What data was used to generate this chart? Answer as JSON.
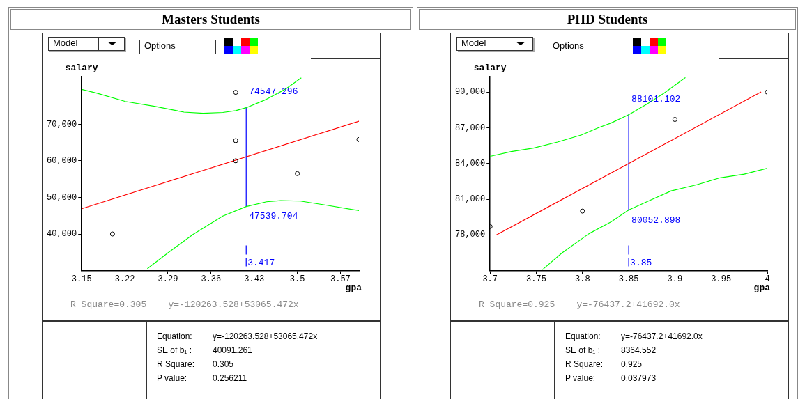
{
  "chart_data": [
    {
      "type": "scatter",
      "title": "Masters Students",
      "xlabel": "gpa",
      "ylabel": "salary",
      "xlim": [
        3.15,
        3.6
      ],
      "xticks": [
        3.15,
        3.22,
        3.29,
        3.36,
        3.43,
        3.5,
        3.57
      ],
      "ylim": [
        30000,
        83000
      ],
      "yticks": [
        {
          "value": 40000,
          "label": "40,000"
        },
        {
          "value": 50000,
          "label": "50,000"
        },
        {
          "value": 60000,
          "label": "60,000"
        },
        {
          "value": 70000,
          "label": "70,000"
        }
      ],
      "series": [
        {
          "marker": "circle",
          "color": "#000000",
          "x": [
            3.2,
            3.4,
            3.4,
            3.4,
            3.5,
            3.6
          ],
          "values": [
            40000,
            60000,
            65500,
            78700,
            56500,
            65800
          ]
        },
        {
          "type": "line",
          "color": "#ff0000",
          "x": [
            3.15,
            3.6
          ],
          "values": [
            46900,
            70800
          ]
        },
        {
          "type": "line",
          "color": "#00ff00",
          "x": [
            3.15,
            3.174,
            3.221,
            3.268,
            3.316,
            3.347,
            3.379,
            3.4,
            3.417,
            3.45,
            3.482,
            3.506
          ],
          "values": [
            79500,
            78500,
            76200,
            74900,
            73300,
            73000,
            73200,
            73700,
            74500,
            76800,
            79700,
            82600
          ]
        },
        {
          "type": "line",
          "color": "#00ff00",
          "x": [
            3.257,
            3.292,
            3.331,
            3.379,
            3.417,
            3.45,
            3.473,
            3.505,
            3.543,
            3.6
          ],
          "values": [
            30600,
            35100,
            39900,
            44900,
            47500,
            48800,
            49100,
            49000,
            48000,
            46400
          ]
        },
        {
          "type": "line",
          "color": "#0000ff",
          "x": [
            3.417,
            3.417
          ],
          "values": [
            47539.704,
            74547.296
          ],
          "value_labels": [
            "47539.704",
            "74547.296"
          ]
        }
      ],
      "annotations": [
        "Model",
        "Options",
        "R Square=0.305    y=-120263.528+53065.472x",
        "Equation: y=-120263.528+53065.472x",
        "SE of b₁ : 40091.261",
        "R Square: 0.305",
        "P value: 0.256211",
        "3.417"
      ]
    },
    {
      "type": "scatter",
      "title": "PHD Students",
      "xlabel": "gpa",
      "ylabel": "salary",
      "xlim": [
        3.7,
        4
      ],
      "xticks": [
        3.7,
        3.75,
        3.8,
        3.85,
        3.9,
        3.95,
        4
      ],
      "ylim": [
        75000,
        91300
      ],
      "yticks": [
        {
          "value": 78000,
          "label": "78,000"
        },
        {
          "value": 81000,
          "label": "81,000"
        },
        {
          "value": 84000,
          "label": "84,000"
        },
        {
          "value": 87000,
          "label": "87,000"
        },
        {
          "value": 90000,
          "label": "90,000"
        }
      ],
      "series": [
        {
          "marker": "circle",
          "color": "#000000",
          "x": [
            3.7,
            3.8,
            3.9,
            4
          ],
          "values": [
            78700,
            80000,
            87700,
            90000
          ]
        },
        {
          "type": "line",
          "color": "#ff0000",
          "x": [
            3.707,
            3.993
          ],
          "values": [
            78000,
            90000
          ]
        },
        {
          "type": "line",
          "color": "#00ff00",
          "x": [
            3.7,
            3.723,
            3.747,
            3.773,
            3.799,
            3.817,
            3.831,
            3.85,
            3.87,
            3.888,
            3.911
          ],
          "values": [
            84600,
            85000,
            85300,
            85800,
            86400,
            87000,
            87400,
            88100,
            89000,
            89900,
            91200
          ]
        },
        {
          "type": "line",
          "color": "#00ff00",
          "x": [
            3.757,
            3.778,
            3.807,
            3.831,
            3.85,
            3.87,
            3.896,
            3.923,
            3.949,
            3.975,
            4
          ],
          "values": [
            75100,
            76500,
            78100,
            79100,
            80100,
            80800,
            81700,
            82200,
            82800,
            83100,
            83600
          ]
        },
        {
          "type": "line",
          "color": "#0000ff",
          "x": [
            3.85,
            3.85
          ],
          "values": [
            80052.898,
            88101.102
          ],
          "value_labels": [
            "80052.898",
            "88101.102"
          ]
        }
      ],
      "annotations": [
        "Model",
        "Options",
        "R Square=0.925    y=-76437.2+41692.0x",
        "Equation: y=-76437.2+41692.0x",
        "SE of b₁ : 8364.552",
        "R Square: 0.925",
        "P value: 0.037973",
        "3.85"
      ]
    }
  ]
}
